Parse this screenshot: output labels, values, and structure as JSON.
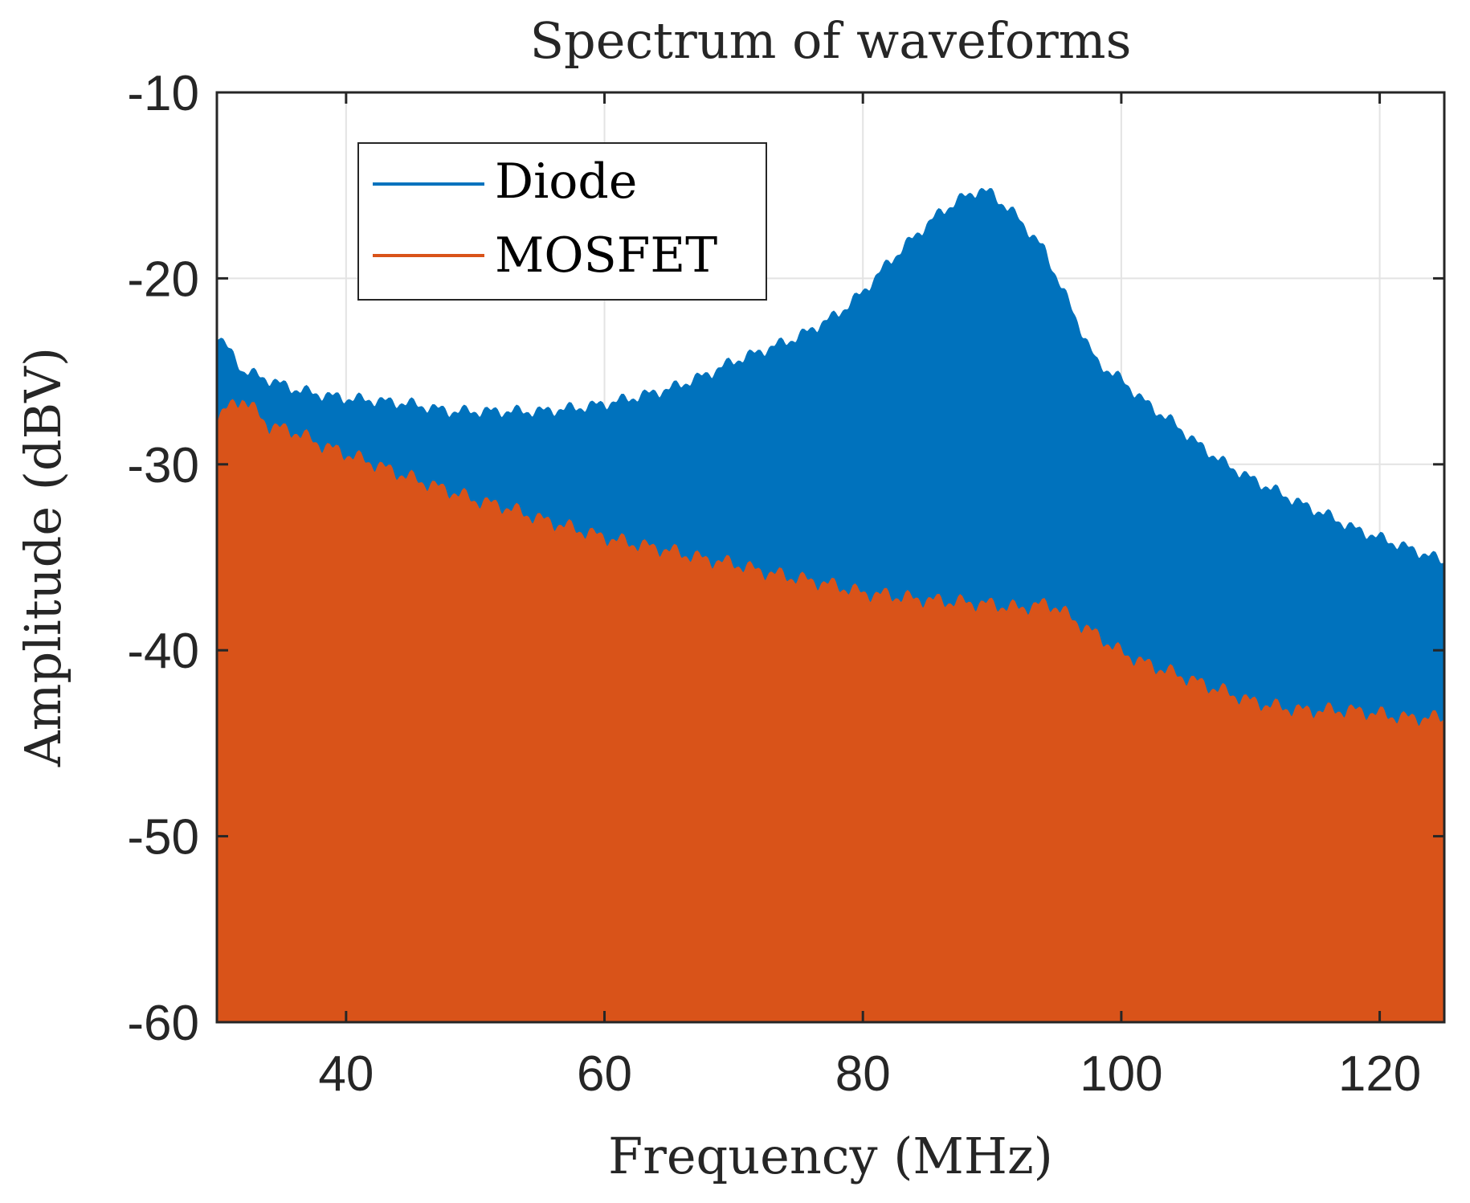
{
  "chart_data": {
    "type": "line",
    "title": "Spectrum of waveforms",
    "xlabel": "Frequency (MHz)",
    "ylabel": "Amplitude (dBV)",
    "xlim": [
      30,
      125
    ],
    "ylim": [
      -60,
      -10
    ],
    "x_ticks": [
      "40",
      "60",
      "80",
      "100",
      "120"
    ],
    "y_ticks": [
      "-10",
      "-20",
      "-30",
      "-40",
      "-50",
      "-60"
    ],
    "grid": true,
    "legend_position": "top-left",
    "series": [
      {
        "name": "Diode",
        "color": "#0072BD",
        "envelope_x": [
          30,
          32,
          34,
          36,
          38,
          40,
          42,
          45,
          48,
          50,
          52,
          55,
          58,
          60,
          62,
          65,
          68,
          70,
          72,
          75,
          78,
          80,
          82,
          84,
          86,
          88,
          89,
          90,
          92,
          94,
          96,
          98,
          100,
          102,
          104,
          106,
          108,
          110,
          112,
          114,
          116,
          118,
          120,
          122,
          124,
          125
        ],
        "envelope_y": [
          -23,
          -25,
          -25.5,
          -26,
          -26.3,
          -26.5,
          -26.6,
          -26.8,
          -27.2,
          -27.2,
          -27.2,
          -27.2,
          -27,
          -26.8,
          -26.5,
          -26,
          -25.2,
          -24.5,
          -24,
          -23.2,
          -22,
          -20.8,
          -19.2,
          -17.8,
          -16.5,
          -15.6,
          -15.3,
          -15.5,
          -16.8,
          -18.5,
          -21.5,
          -24.5,
          -25.5,
          -26.8,
          -27.8,
          -29,
          -30,
          -30.8,
          -31.5,
          -32.2,
          -32.8,
          -33.5,
          -34,
          -34.5,
          -35,
          -35.3
        ],
        "floor": -60
      },
      {
        "name": "MOSFET",
        "color": "#D95319",
        "envelope_x": [
          30,
          32,
          34,
          36,
          38,
          40,
          42,
          45,
          48,
          50,
          52,
          55,
          58,
          60,
          62,
          65,
          68,
          70,
          72,
          75,
          78,
          80,
          82,
          84,
          86,
          88,
          90,
          92,
          94,
          95,
          96,
          98,
          100,
          102,
          104,
          106,
          108,
          110,
          112,
          114,
          116,
          118,
          120,
          122,
          124,
          125
        ],
        "envelope_y": [
          -27.5,
          -26.5,
          -28,
          -28.3,
          -29,
          -29.5,
          -30,
          -30.8,
          -31.5,
          -32,
          -32.3,
          -33,
          -33.6,
          -34,
          -34.3,
          -34.7,
          -35.2,
          -35.4,
          -35.8,
          -36.2,
          -36.6,
          -37,
          -37.1,
          -37.3,
          -37.4,
          -37.5,
          -37.6,
          -37.8,
          -37.6,
          -37.7,
          -38.3,
          -39.2,
          -40.2,
          -40.8,
          -41.3,
          -41.8,
          -42.3,
          -42.8,
          -43.1,
          -43.3,
          -43.3,
          -43.3,
          -43.5,
          -43.7,
          -43.7,
          -43.7
        ],
        "floor": -60
      }
    ]
  }
}
